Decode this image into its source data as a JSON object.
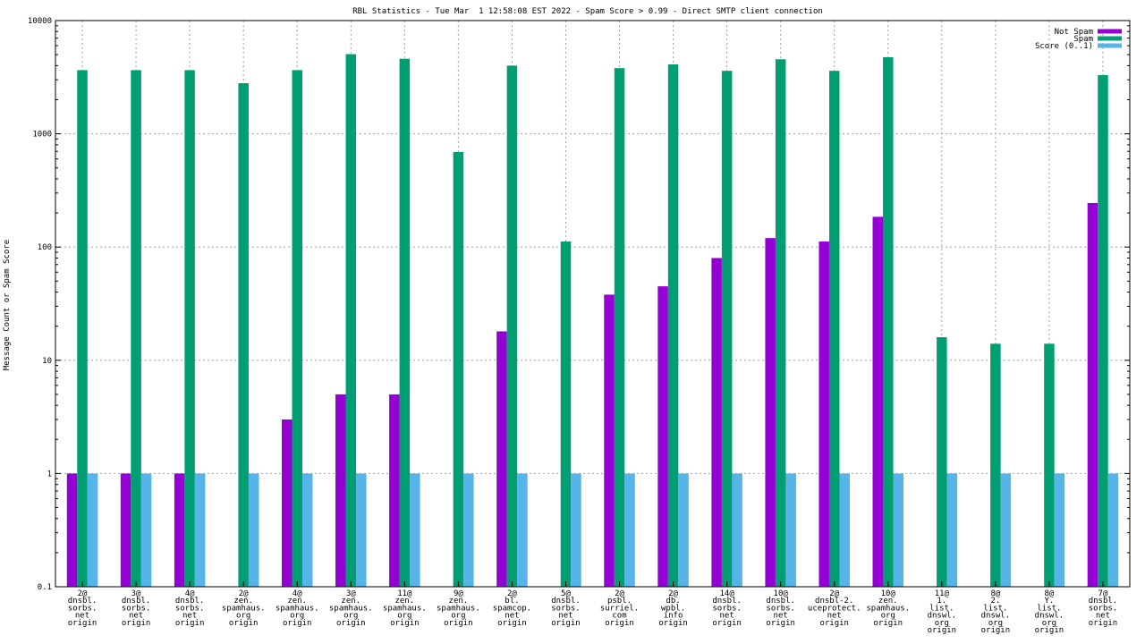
{
  "chart_data": {
    "type": "bar",
    "title": "RBL Statistics - Tue Mar  1 12:58:08 EST 2022 - Spam Score > 0.99 - Direct SMTP client connection",
    "ylabel": "Message Count or Spam Score",
    "xlabel": "",
    "yscale": "log",
    "ylim": [
      0.1,
      10000
    ],
    "yticks": [
      "0.1",
      "1",
      "10",
      "100",
      "1000",
      "10000"
    ],
    "grid": true,
    "legend_position": "top-right",
    "categories": [
      [
        "2@",
        "dnsbl.",
        "sorbs.",
        "net",
        "origin"
      ],
      [
        "3@",
        "dnsbl.",
        "sorbs.",
        "net",
        "origin"
      ],
      [
        "4@",
        "dnsbl.",
        "sorbs.",
        "net",
        "origin"
      ],
      [
        "2@",
        "zen.",
        "spamhaus.",
        "org",
        "origin"
      ],
      [
        "4@",
        "zen.",
        "spamhaus.",
        "org",
        "origin"
      ],
      [
        "3@",
        "zen.",
        "spamhaus.",
        "org",
        "origin"
      ],
      [
        "11@",
        "zen.",
        "spamhaus.",
        "org",
        "origin"
      ],
      [
        "9@",
        "zen.",
        "spamhaus.",
        "org",
        "origin"
      ],
      [
        "2@",
        "bl.",
        "spamcop.",
        "net",
        "origin"
      ],
      [
        "5@",
        "dnsbl.",
        "sorbs.",
        "net",
        "origin"
      ],
      [
        "2@",
        "psbl.",
        "surriel.",
        "com",
        "origin"
      ],
      [
        "2@",
        "db.",
        "wpbl.",
        "info",
        "origin"
      ],
      [
        "14@",
        "dnsbl.",
        "sorbs.",
        "net",
        "origin"
      ],
      [
        "10@",
        "dnsbl.",
        "sorbs.",
        "net",
        "origin"
      ],
      [
        "2@",
        "dnsbl-2.",
        "uceprotect.",
        "net",
        "origin"
      ],
      [
        "10@",
        "zen.",
        "spamhaus.",
        "org",
        "origin"
      ],
      [
        "11@",
        "1.",
        "list.",
        "dnswl.",
        "org",
        "origin"
      ],
      [
        "8@",
        "2.",
        "list.",
        "dnswl.",
        "org",
        "origin"
      ],
      [
        "8@",
        "Y.",
        "list.",
        "dnswl.",
        "org",
        "origin"
      ],
      [
        "7@",
        "dnsbl.",
        "sorbs.",
        "net",
        "origin"
      ]
    ],
    "series": [
      {
        "name": "Not Spam",
        "color": "#9400d3",
        "values": [
          1,
          1,
          1,
          0,
          3,
          5,
          5,
          0,
          18,
          0,
          38,
          45,
          80,
          120,
          112,
          185,
          0,
          0,
          0,
          245
        ]
      },
      {
        "name": "Spam",
        "color": "#009e73",
        "values": [
          3650,
          3650,
          3650,
          2800,
          3650,
          5050,
          4600,
          690,
          4000,
          112,
          3800,
          4100,
          3600,
          4550,
          3600,
          4750,
          16,
          14,
          14,
          3300
        ]
      },
      {
        "name": "Score (0..1)",
        "color": "#56b4e9",
        "values": [
          1,
          1,
          1,
          1,
          1,
          1,
          1,
          1,
          1,
          1,
          1,
          1,
          1,
          1,
          1,
          1,
          1,
          1,
          1,
          1
        ]
      }
    ]
  }
}
